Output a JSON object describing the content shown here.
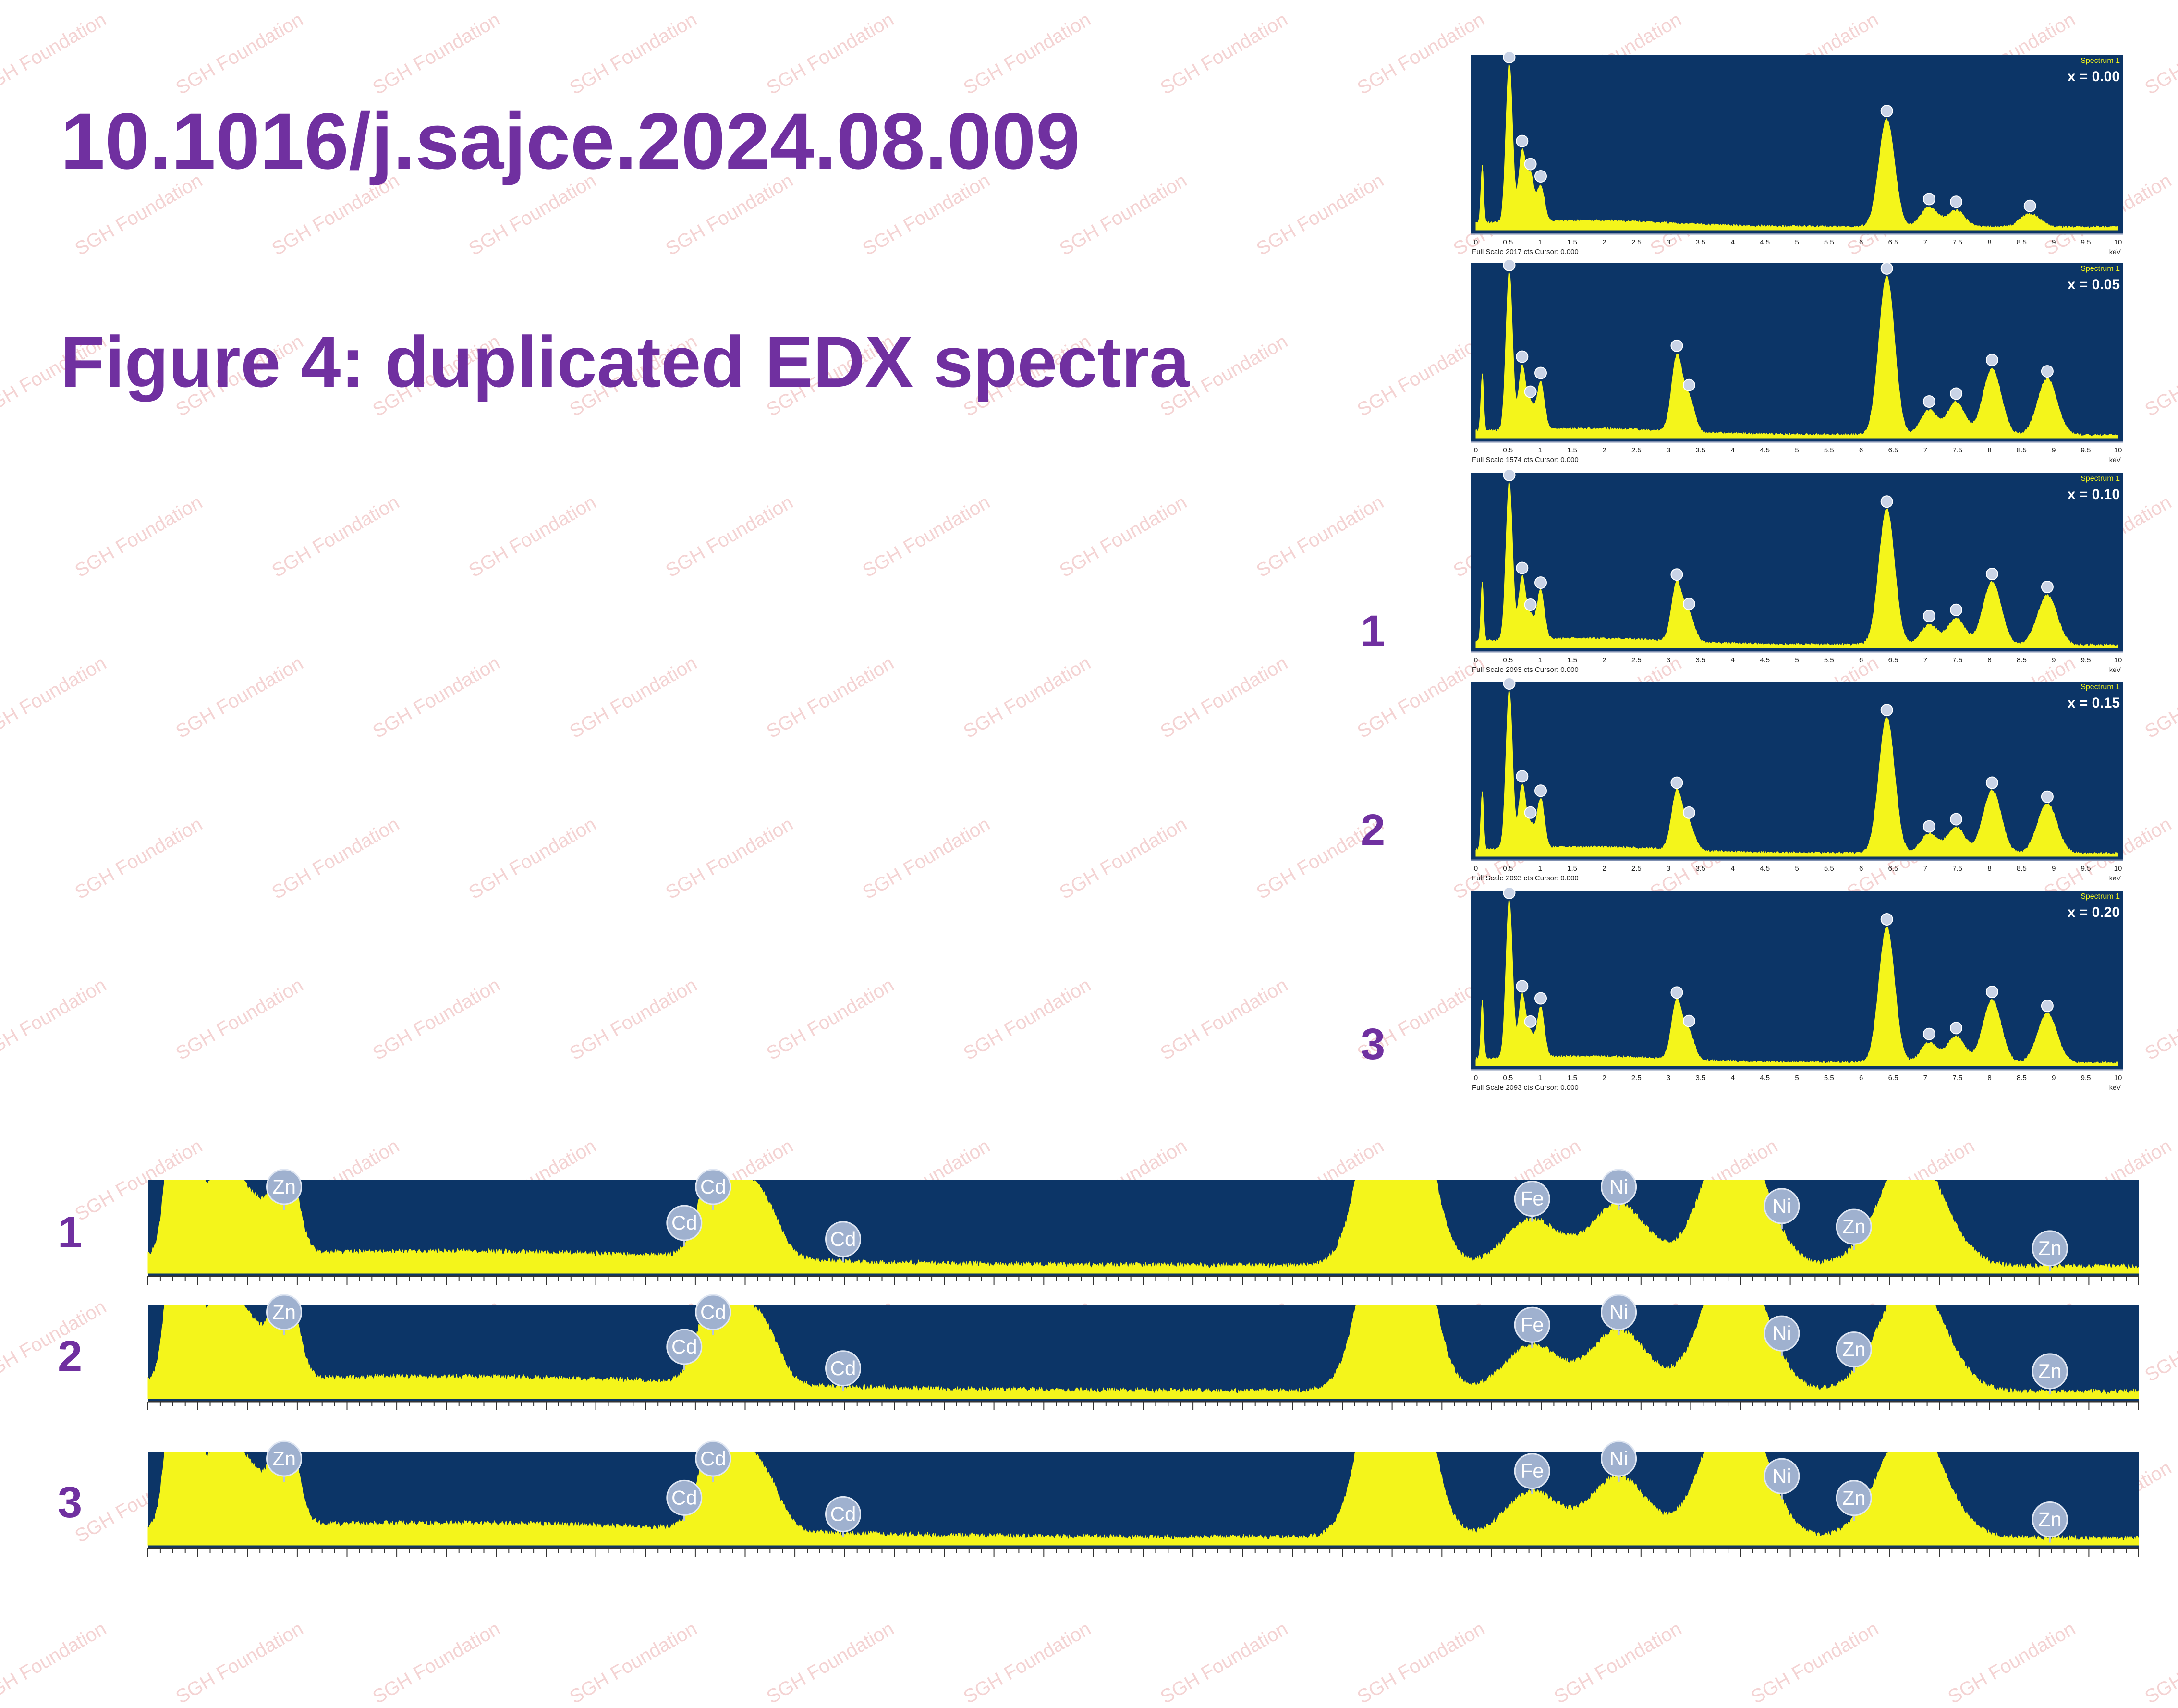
{
  "doi": "10.1016/j.sajce.2024.08.009",
  "figure_title": "Figure 4: duplicated EDX spectra",
  "watermark_text": "SGH Foundation",
  "markers": {
    "panel_1": "1",
    "panel_2": "2",
    "panel_3": "3",
    "zoom_1": "1",
    "zoom_2": "2",
    "zoom_3": "3"
  },
  "colors": {
    "accent": "#7030a0",
    "plot_background": "#0c3567",
    "spectrum": "#f4f51b",
    "watermark": "#f4d3d3"
  },
  "chart_data": [
    {
      "type": "area",
      "spectrum_label": "Spectrum 1",
      "annotation": "x = 0.00",
      "footer": "Full Scale 2017 cts Cursor: 0.000",
      "x_unit": "keV",
      "x_ticks": [
        "0",
        "0.5",
        "1",
        "1.5",
        "2",
        "2.5",
        "3",
        "3.5",
        "4",
        "4.5",
        "5",
        "5.5",
        "6",
        "6.5",
        "7",
        "7.5",
        "8",
        "8.5",
        "9",
        "9.5",
        "10"
      ],
      "xlim": [
        0,
        10
      ],
      "peaks": [
        {
          "keV": 0.52,
          "rel": 0.97
        },
        {
          "keV": 0.72,
          "rel": 0.42
        },
        {
          "keV": 0.85,
          "rel": 0.28
        },
        {
          "keV": 1.01,
          "rel": 0.22
        },
        {
          "keV": 6.4,
          "rel": 0.65
        },
        {
          "keV": 7.06,
          "rel": 0.12
        },
        {
          "keV": 7.48,
          "rel": 0.1
        },
        {
          "keV": 8.63,
          "rel": 0.08
        }
      ]
    },
    {
      "type": "area",
      "spectrum_label": "Spectrum 1",
      "annotation": "x = 0.05",
      "footer": "Full Scale 1574 cts Cursor: 0.000",
      "x_unit": "keV",
      "x_ticks": [
        "0",
        "0.5",
        "1",
        "1.5",
        "2",
        "2.5",
        "3",
        "3.5",
        "4",
        "4.5",
        "5",
        "5.5",
        "6",
        "6.5",
        "7",
        "7.5",
        "8",
        "8.5",
        "9",
        "9.5",
        "10"
      ],
      "xlim": [
        0,
        10
      ],
      "peaks": [
        {
          "keV": 0.52,
          "rel": 0.96
        },
        {
          "keV": 0.72,
          "rel": 0.38
        },
        {
          "keV": 0.85,
          "rel": 0.16
        },
        {
          "keV": 1.01,
          "rel": 0.29
        },
        {
          "keV": 3.13,
          "rel": 0.45
        },
        {
          "keV": 3.32,
          "rel": 0.2
        },
        {
          "keV": 6.4,
          "rel": 0.96
        },
        {
          "keV": 7.06,
          "rel": 0.15
        },
        {
          "keV": 7.48,
          "rel": 0.2
        },
        {
          "keV": 8.04,
          "rel": 0.4
        },
        {
          "keV": 8.9,
          "rel": 0.34
        }
      ]
    },
    {
      "type": "area",
      "spectrum_label": "Spectrum 1",
      "annotation": "x = 0.10",
      "footer": "Full Scale 2093 cts Cursor: 0.000",
      "x_unit": "keV",
      "x_ticks": [
        "0",
        "0.5",
        "1",
        "1.5",
        "2",
        "2.5",
        "3",
        "3.5",
        "4",
        "4.5",
        "5",
        "5.5",
        "6",
        "6.5",
        "7",
        "7.5",
        "8",
        "8.5",
        "9",
        "9.5",
        "10"
      ],
      "xlim": [
        0,
        10
      ],
      "peaks": [
        {
          "keV": 0.52,
          "rel": 0.96
        },
        {
          "keV": 0.72,
          "rel": 0.38
        },
        {
          "keV": 0.85,
          "rel": 0.14
        },
        {
          "keV": 1.01,
          "rel": 0.3
        },
        {
          "keV": 3.13,
          "rel": 0.35
        },
        {
          "keV": 3.32,
          "rel": 0.16
        },
        {
          "keV": 6.4,
          "rel": 0.82
        },
        {
          "keV": 7.06,
          "rel": 0.12
        },
        {
          "keV": 7.48,
          "rel": 0.16
        },
        {
          "keV": 8.04,
          "rel": 0.38
        },
        {
          "keV": 8.9,
          "rel": 0.3
        }
      ]
    },
    {
      "type": "area",
      "spectrum_label": "Spectrum 1",
      "annotation": "x = 0.15",
      "footer": "Full Scale 2093 cts Cursor: 0.000",
      "x_unit": "keV",
      "x_ticks": [
        "0",
        "0.5",
        "1",
        "1.5",
        "2",
        "2.5",
        "3",
        "3.5",
        "4",
        "4.5",
        "5",
        "5.5",
        "6",
        "6.5",
        "7",
        "7.5",
        "8",
        "8.5",
        "9",
        "9.5",
        "10"
      ],
      "xlim": [
        0,
        10
      ],
      "peaks": [
        {
          "keV": 0.52,
          "rel": 0.96
        },
        {
          "keV": 0.72,
          "rel": 0.38
        },
        {
          "keV": 0.85,
          "rel": 0.14
        },
        {
          "keV": 1.01,
          "rel": 0.3
        },
        {
          "keV": 3.13,
          "rel": 0.35
        },
        {
          "keV": 3.32,
          "rel": 0.16
        },
        {
          "keV": 6.4,
          "rel": 0.82
        },
        {
          "keV": 7.06,
          "rel": 0.12
        },
        {
          "keV": 7.48,
          "rel": 0.16
        },
        {
          "keV": 8.04,
          "rel": 0.38
        },
        {
          "keV": 8.9,
          "rel": 0.3
        }
      ]
    },
    {
      "type": "area",
      "spectrum_label": "Spectrum 1",
      "annotation": "x = 0.20",
      "footer": "Full Scale 2093 cts Cursor: 0.000",
      "x_unit": "keV",
      "x_ticks": [
        "0",
        "0.5",
        "1",
        "1.5",
        "2",
        "2.5",
        "3",
        "3.5",
        "4",
        "4.5",
        "5",
        "5.5",
        "6",
        "6.5",
        "7",
        "7.5",
        "8",
        "8.5",
        "9",
        "9.5",
        "10"
      ],
      "xlim": [
        0,
        10
      ],
      "peaks": [
        {
          "keV": 0.52,
          "rel": 0.96
        },
        {
          "keV": 0.72,
          "rel": 0.38
        },
        {
          "keV": 0.85,
          "rel": 0.14
        },
        {
          "keV": 1.01,
          "rel": 0.3
        },
        {
          "keV": 3.13,
          "rel": 0.35
        },
        {
          "keV": 3.32,
          "rel": 0.16
        },
        {
          "keV": 6.4,
          "rel": 0.82
        },
        {
          "keV": 7.06,
          "rel": 0.12
        },
        {
          "keV": 7.48,
          "rel": 0.16
        },
        {
          "keV": 8.04,
          "rel": 0.38
        },
        {
          "keV": 8.9,
          "rel": 0.3
        }
      ]
    },
    {
      "type": "area",
      "annotation": "1",
      "x_keV_range": [
        0.35,
        10.0
      ],
      "element_labels": [
        {
          "label": "Zn",
          "keV": 1.01
        },
        {
          "label": "Cd",
          "keV": 2.95
        },
        {
          "label": "Cd",
          "keV": 3.09
        },
        {
          "label": "Cd",
          "keV": 3.72
        },
        {
          "label": "Fe",
          "keV": 7.06
        },
        {
          "label": "Ni",
          "keV": 7.48
        },
        {
          "label": "Ni",
          "keV": 8.27
        },
        {
          "label": "Zn",
          "keV": 8.62
        },
        {
          "label": "Zn",
          "keV": 9.57
        }
      ]
    },
    {
      "type": "area",
      "annotation": "2",
      "x_keV_range": [
        0.35,
        10.0
      ],
      "element_labels": [
        {
          "label": "Zn",
          "keV": 1.01
        },
        {
          "label": "Cd",
          "keV": 2.95
        },
        {
          "label": "Cd",
          "keV": 3.09
        },
        {
          "label": "Cd",
          "keV": 3.72
        },
        {
          "label": "Fe",
          "keV": 7.06
        },
        {
          "label": "Ni",
          "keV": 7.48
        },
        {
          "label": "Ni",
          "keV": 8.27
        },
        {
          "label": "Zn",
          "keV": 8.62
        },
        {
          "label": "Zn",
          "keV": 9.57
        }
      ]
    },
    {
      "type": "area",
      "annotation": "3",
      "x_keV_range": [
        0.35,
        10.0
      ],
      "element_labels": [
        {
          "label": "Zn",
          "keV": 1.01
        },
        {
          "label": "Cd",
          "keV": 2.95
        },
        {
          "label": "Cd",
          "keV": 3.09
        },
        {
          "label": "Cd",
          "keV": 3.72
        },
        {
          "label": "Fe",
          "keV": 7.06
        },
        {
          "label": "Ni",
          "keV": 7.48
        },
        {
          "label": "Ni",
          "keV": 8.27
        },
        {
          "label": "Zn",
          "keV": 8.62
        },
        {
          "label": "Zn",
          "keV": 9.57
        }
      ]
    }
  ]
}
